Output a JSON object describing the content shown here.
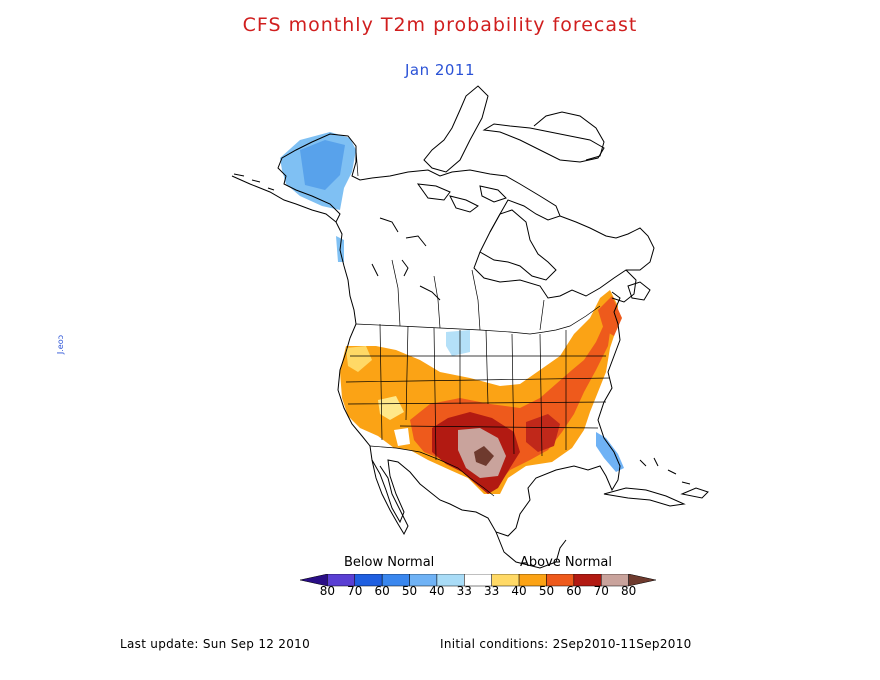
{
  "title": "CFS monthly T2m probability forecast",
  "subtitle": "Jan 2011",
  "legend": {
    "below_label": "Below Normal",
    "above_label": "Above Normal",
    "ticks": [
      "80",
      "70",
      "60",
      "50",
      "40",
      "33",
      "33",
      "40",
      "50",
      "60",
      "70",
      "80"
    ],
    "colors": [
      "#2a0e86",
      "#5a3fd3",
      "#1f5fe0",
      "#3a87ee",
      "#6fb2f5",
      "#a9dcf7",
      "#ffffff",
      "#ffd966",
      "#fba315",
      "#ee5a1c",
      "#b21a12",
      "#c9a39c",
      "#6e3a2e"
    ]
  },
  "footer": {
    "last_update": "Last update: Sun Sep 12 2010",
    "initial_conditions": "Initial conditions: 2Sep2010-11Sep2010"
  },
  "side_mark": "J.eoɔ"
}
